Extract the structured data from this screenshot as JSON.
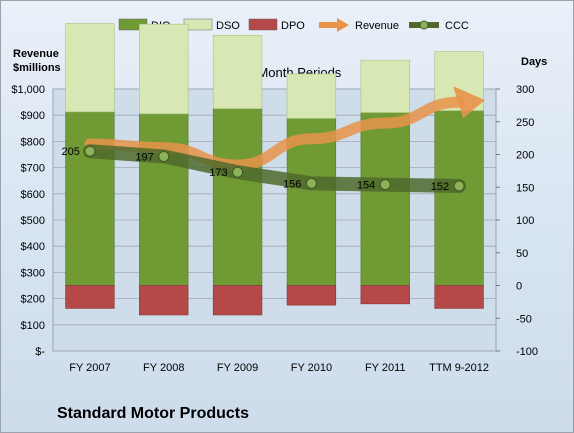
{
  "chart_data": {
    "type": "bar",
    "title": "12-Month Periods",
    "company": "Standard Motor Products",
    "left_axis_title": [
      "Revenue",
      "$millions"
    ],
    "right_axis_title": "Days",
    "categories": [
      "FY 2007",
      "FY 2008",
      "FY 2009",
      "FY 2010",
      "FY 2011",
      "TTM 9-2012"
    ],
    "left_axis": {
      "min": 0,
      "max": 1000,
      "step": 100,
      "ticks": [
        "$-",
        "$100",
        "$200",
        "$300",
        "$400",
        "$500",
        "$600",
        "$700",
        "$800",
        "$900",
        "$1,000"
      ]
    },
    "right_axis": {
      "min": -100,
      "max": 300,
      "step": 50,
      "ticks": [
        "-100",
        "-50",
        "0",
        "50",
        "100",
        "150",
        "200",
        "250",
        "300"
      ]
    },
    "legend": {
      "position": "top",
      "entries": [
        "DIO",
        "DSO",
        "DPO",
        "Revenue",
        "CCC"
      ]
    },
    "grid": true,
    "series": [
      {
        "name": "DIO",
        "axis": "right",
        "kind": "stacked-bar",
        "color": "#6f9a34",
        "values": [
          265,
          262,
          270,
          255,
          264,
          267
        ]
      },
      {
        "name": "DSO",
        "axis": "right",
        "kind": "stacked-bar",
        "color": "#d8e8b4",
        "values": [
          135,
          137,
          112,
          68,
          80,
          90
        ]
      },
      {
        "name": "DPO",
        "axis": "right",
        "kind": "stacked-bar-negative",
        "color": "#b5494a",
        "values": [
          -35,
          -45,
          -45,
          -30,
          -28,
          -35
        ]
      },
      {
        "name": "Revenue",
        "axis": "left",
        "kind": "line-arrow",
        "color": "#e8934a",
        "values": [
          790,
          776,
          710,
          810,
          870,
          950
        ]
      },
      {
        "name": "CCC",
        "axis": "right",
        "kind": "line",
        "color": "#4f6a2c",
        "values": [
          205,
          197,
          173,
          156,
          154,
          152
        ],
        "labels": [
          "205",
          "197",
          "173",
          "156",
          "154",
          "152"
        ]
      }
    ]
  }
}
